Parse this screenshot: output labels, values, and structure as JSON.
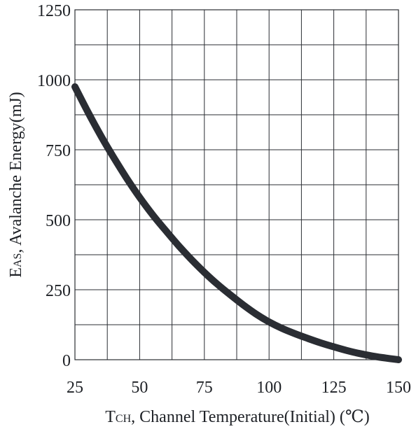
{
  "chart_data": {
    "type": "line",
    "xlabel_main": "T",
    "xlabel_sub": "CH",
    "xlabel_rest": ", Channel Temperature(Initial) (℃)",
    "ylabel_main": "E",
    "ylabel_sub": "AS",
    "ylabel_rest": ", Avalanche Energy(mJ)",
    "xlim": [
      25,
      150
    ],
    "ylim": [
      0,
      1250
    ],
    "x_ticks": [
      "25",
      "50",
      "75",
      "100",
      "125",
      "150"
    ],
    "y_ticks": [
      "0",
      "250",
      "500",
      "750",
      "1000",
      "1250"
    ],
    "grid": true,
    "series": [
      {
        "color": "#2a2d33",
        "x": [
          25,
          30,
          35,
          40,
          45,
          50,
          55,
          60,
          65,
          70,
          75,
          80,
          85,
          90,
          95,
          100,
          105,
          110,
          115,
          120,
          125,
          130,
          135,
          140,
          145,
          150
        ],
        "y": [
          975,
          885,
          800,
          722,
          648,
          580,
          518,
          462,
          408,
          358,
          312,
          270,
          232,
          196,
          163,
          135,
          112,
          93,
          76,
          60,
          46,
          33,
          22,
          13,
          6,
          0
        ]
      }
    ]
  }
}
